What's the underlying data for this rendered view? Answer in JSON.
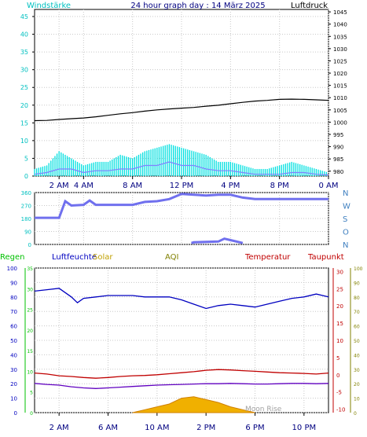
{
  "chart_data": [
    {
      "type": "line",
      "title": "24 hour graph day : 14 März 2025",
      "left_axis_label": "Windstärke",
      "right_axis_label": "Luftdruck",
      "left_ticks": [
        "0",
        "5",
        "10",
        "15",
        "20",
        "25",
        "30",
        "35",
        "40",
        "45"
      ],
      "left_ylim": [
        0,
        47
      ],
      "right_ticks": [
        "980",
        "985",
        "990",
        "995",
        "1000",
        "1005",
        "1010",
        "1015",
        "1020",
        "1025",
        "1030",
        "1035",
        "1040",
        "1045"
      ],
      "right_ylim": [
        978,
        1046
      ],
      "x_tick_labels": [
        "2 AM",
        "4 AM",
        "8 AM",
        "12 PM",
        "4 PM",
        "8 PM",
        "0 AM"
      ],
      "grid": true,
      "series": [
        {
          "role": "pressure",
          "color": "#000000",
          "x": [
            0,
            1,
            2,
            3,
            4,
            5,
            6,
            7,
            8,
            9,
            10,
            11,
            12,
            13,
            14,
            15,
            16,
            17,
            18,
            19,
            20,
            21,
            22,
            23,
            24
          ],
          "values": [
            1000.6,
            1000.7,
            1001.1,
            1001.4,
            1001.7,
            1002.2,
            1002.8,
            1003.4,
            1003.9,
            1004.5,
            1005.0,
            1005.4,
            1005.7,
            1006.0,
            1006.5,
            1006.9,
            1007.5,
            1008.1,
            1008.6,
            1008.9,
            1009.3,
            1009.4,
            1009.3,
            1009.1,
            1008.9
          ]
        },
        {
          "role": "gust",
          "color": "#00e0e0",
          "x": [
            0,
            1,
            2,
            3,
            4,
            5,
            6,
            7,
            8,
            9,
            10,
            11,
            12,
            13,
            14,
            15,
            16,
            17,
            18,
            19,
            20,
            21,
            22,
            23,
            24
          ],
          "values": [
            2,
            3,
            7,
            5,
            3,
            4,
            4,
            6,
            5,
            7,
            8,
            9,
            8,
            7,
            6,
            4,
            4,
            3,
            2,
            2,
            3,
            4,
            3,
            2,
            1
          ]
        },
        {
          "role": "wind",
          "color": "#8080ff",
          "x": [
            0,
            1,
            2,
            3,
            4,
            5,
            6,
            7,
            8,
            9,
            10,
            11,
            12,
            13,
            14,
            15,
            16,
            17,
            18,
            19,
            20,
            21,
            22,
            23,
            24
          ],
          "values": [
            0.5,
            1,
            2,
            2,
            1,
            1.5,
            1.5,
            2,
            2,
            3,
            3,
            4,
            3,
            3,
            2,
            1.5,
            1.5,
            1,
            0.5,
            0.5,
            0.5,
            1,
            1,
            0.5,
            0.3
          ]
        }
      ]
    },
    {
      "type": "scatter",
      "left_ticks": [
        "0",
        "90",
        "180",
        "270",
        "360"
      ],
      "ylim": [
        0,
        360
      ],
      "right_labels": [
        "N",
        "W",
        "S",
        "O",
        "N"
      ],
      "series": [
        {
          "role": "wind-direction",
          "color": "#7070ee",
          "x": [
            0,
            1.6,
            2,
            2.5,
            3,
            4,
            4.5,
            5,
            6,
            8,
            9,
            10,
            11,
            12,
            13,
            14,
            15,
            16,
            17,
            18,
            20,
            22,
            24
          ],
          "values": [
            185,
            185,
            185,
            300,
            270,
            275,
            305,
            275,
            275,
            275,
            295,
            300,
            315,
            350,
            345,
            340,
            345,
            345,
            325,
            315,
            315,
            315,
            315
          ]
        },
        {
          "role": "wind-direction-low",
          "color": "#7070ee",
          "x": [
            12.8,
            13.0,
            15,
            15.5,
            16,
            17
          ],
          "values": [
            10,
            15,
            20,
            40,
            30,
            10
          ]
        }
      ]
    },
    {
      "type": "line",
      "legend": [
        {
          "label": "Regen",
          "color": "#00c000"
        },
        {
          "label": "Luftfeuchte",
          "color": "#0000c0"
        },
        {
          "label": "Solar",
          "color": "#c0a000"
        },
        {
          "label": "AQI",
          "color": "#808000"
        },
        {
          "label": "Temperatur",
          "color": "#c00000"
        },
        {
          "label": "Taupunkt",
          "color": "#c00000"
        }
      ],
      "left_ticks": [
        "0",
        "10",
        "20",
        "30",
        "40",
        "50",
        "60",
        "70",
        "80",
        "90",
        "100"
      ],
      "ylim": [
        0,
        100
      ],
      "rain_ticks": [
        "0",
        "5",
        "10",
        "15",
        "20",
        "25",
        "30",
        "35"
      ],
      "temp_ticks": [
        "-10",
        "-5",
        "0",
        "5",
        "10",
        "15",
        "20",
        "25",
        "30"
      ],
      "temp_ylim": [
        -11,
        31
      ],
      "aqi_ticks": [
        "0",
        "10",
        "20",
        "30",
        "40",
        "50",
        "60",
        "70",
        "80",
        "90",
        "100"
      ],
      "x_tick_labels": [
        "2 AM",
        "6 AM",
        "10 AM",
        "2 PM",
        "6 PM",
        "10 PM"
      ],
      "annotation": "Moon Rise",
      "grid": true,
      "series": [
        {
          "role": "humidity",
          "color": "#0000c0",
          "x": [
            0,
            1,
            2,
            3,
            3.5,
            4,
            5,
            6,
            7,
            8,
            9,
            10,
            11,
            12,
            13,
            14,
            15,
            16,
            17,
            18,
            19,
            20,
            21,
            22,
            23,
            24
          ],
          "values": [
            84,
            85,
            86,
            80,
            76,
            79,
            80,
            81,
            81,
            81,
            80,
            80,
            80,
            78,
            75,
            72,
            74,
            75,
            74,
            73,
            75,
            77,
            79,
            80,
            82,
            80
          ]
        },
        {
          "role": "solar",
          "color": "#e0a000",
          "x": [
            8,
            9,
            10,
            11,
            12,
            13,
            14,
            15,
            16,
            17,
            18
          ],
          "values": [
            0,
            2,
            4,
            6,
            10,
            11,
            9,
            7,
            4,
            2,
            0
          ]
        },
        {
          "role": "temperature",
          "color": "#c00000",
          "x": [
            0,
            1,
            2,
            3,
            4,
            5,
            6,
            7,
            8,
            9,
            10,
            11,
            12,
            13,
            14,
            15,
            16,
            17,
            18,
            19,
            20,
            21,
            22,
            23,
            24
          ],
          "values": [
            0.5,
            0.2,
            -0.3,
            -0.5,
            -0.8,
            -1.0,
            -0.8,
            -0.5,
            -0.3,
            -0.2,
            0.0,
            0.3,
            0.6,
            0.9,
            1.3,
            1.5,
            1.4,
            1.2,
            1.0,
            0.8,
            0.6,
            0.5,
            0.4,
            0.2,
            0.5
          ]
        },
        {
          "role": "dewpoint",
          "color": "#6000c0",
          "x": [
            0,
            1,
            2,
            3,
            4,
            5,
            6,
            7,
            8,
            9,
            10,
            11,
            12,
            13,
            14,
            15,
            16,
            17,
            18,
            19,
            20,
            21,
            22,
            23,
            24
          ],
          "values": [
            -2.5,
            -2.8,
            -3.0,
            -3.5,
            -3.8,
            -4.0,
            -3.8,
            -3.6,
            -3.4,
            -3.2,
            -3.0,
            -2.9,
            -2.8,
            -2.7,
            -2.6,
            -2.6,
            -2.5,
            -2.6,
            -2.7,
            -2.7,
            -2.6,
            -2.5,
            -2.5,
            -2.6,
            -2.5
          ]
        }
      ]
    }
  ]
}
